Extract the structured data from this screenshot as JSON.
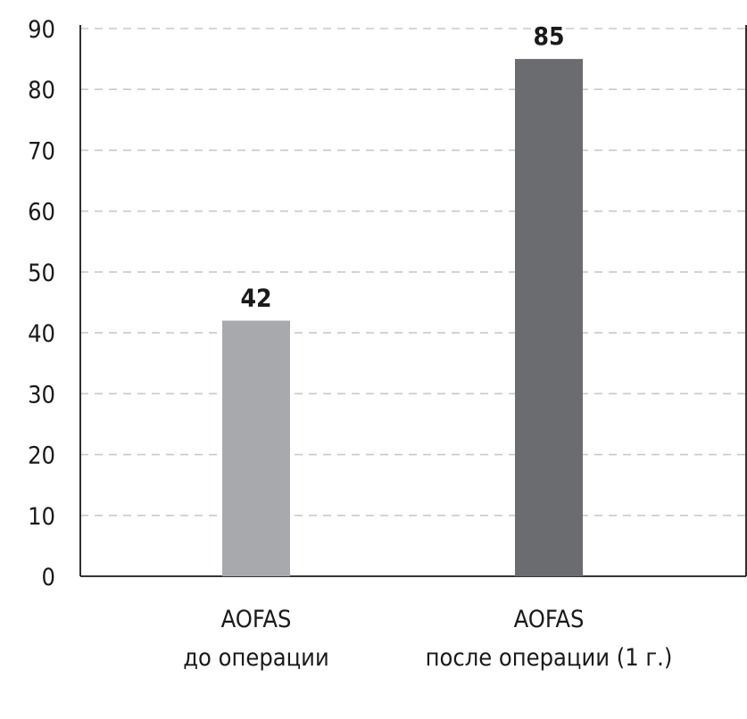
{
  "chart_data": {
    "type": "bar",
    "title": "",
    "xlabel": "",
    "ylabel": "",
    "ylim": [
      0,
      90
    ],
    "yticks": [
      0,
      10,
      20,
      30,
      40,
      50,
      60,
      70,
      80,
      90
    ],
    "grid": true,
    "categories": [
      {
        "line1": "AOFAS",
        "line2": "до операции"
      },
      {
        "line1": "AOFAS",
        "line2": "после операции (1 г.)"
      }
    ],
    "values": [
      42,
      85
    ],
    "value_labels": [
      "42",
      "85"
    ],
    "colors": [
      "#a8a9ad",
      "#6b6c70"
    ]
  }
}
